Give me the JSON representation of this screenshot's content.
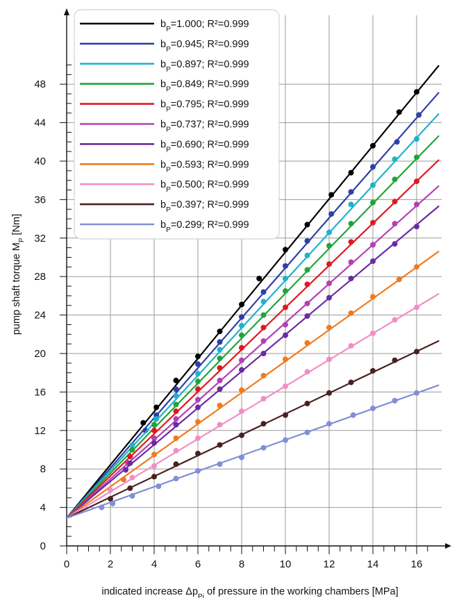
{
  "chart_data": {
    "type": "line",
    "xlabel": {
      "prefix": "indicated increase Δp",
      "subscript": "Pi",
      "suffix": " of pressure in the working chambers [MPa]"
    },
    "ylabel": {
      "prefix": "pump shaft torque M",
      "subscript": "P",
      "suffix": " [Nm]"
    },
    "xlim": [
      0,
      17
    ],
    "ylim": [
      0,
      51
    ],
    "xticks": [
      0,
      2,
      4,
      6,
      8,
      10,
      12,
      14,
      16
    ],
    "yticks": [
      0,
      4,
      8,
      12,
      16,
      20,
      24,
      28,
      32,
      36,
      40,
      44,
      48
    ],
    "grid": true,
    "legend": "top-left",
    "series": [
      {
        "name": "bP=1.000; R²=0.999",
        "b_value": "1.000",
        "r2": "0.999",
        "color": "#000000",
        "line": {
          "x0": 0,
          "y0": 2.9,
          "x1": 17,
          "y1": 49.9
        },
        "points": [
          [
            3.5,
            12.8
          ],
          [
            4.1,
            14.4
          ],
          [
            5.0,
            17.2
          ],
          [
            6.0,
            19.7
          ],
          [
            7.0,
            22.3
          ],
          [
            8.0,
            25.1
          ],
          [
            8.8,
            27.8
          ],
          [
            10.0,
            30.8
          ],
          [
            11.0,
            33.4
          ],
          [
            12.1,
            36.5
          ],
          [
            13.0,
            38.8
          ],
          [
            14.0,
            41.6
          ],
          [
            15.2,
            45.1
          ],
          [
            16.0,
            47.2
          ]
        ]
      },
      {
        "name": "bP=0.945; R²=0.999",
        "b_value": "0.945",
        "r2": "0.999",
        "color": "#2e3fa6",
        "line": {
          "x0": 0,
          "y0": 2.9,
          "x1": 17,
          "y1": 47.1
        },
        "points": [
          [
            3.6,
            12.0
          ],
          [
            4.1,
            13.6
          ],
          [
            5.0,
            16.3
          ],
          [
            6.0,
            18.9
          ],
          [
            7.0,
            21.2
          ],
          [
            8.0,
            23.8
          ],
          [
            9.0,
            26.4
          ],
          [
            10.0,
            29.1
          ],
          [
            11.0,
            31.7
          ],
          [
            12.1,
            34.5
          ],
          [
            13.0,
            36.8
          ],
          [
            14.0,
            39.4
          ],
          [
            15.1,
            42.0
          ],
          [
            16.1,
            44.8
          ]
        ]
      },
      {
        "name": "bP=0.897; R²=0.999",
        "b_value": "0.897",
        "r2": "0.999",
        "color": "#1fb2cc",
        "line": {
          "x0": 0,
          "y0": 2.9,
          "x1": 17,
          "y1": 44.9
        },
        "points": [
          [
            3.0,
            10.5
          ],
          [
            4.1,
            13.2
          ],
          [
            5.0,
            15.6
          ],
          [
            6.0,
            17.9
          ],
          [
            7.0,
            20.4
          ],
          [
            8.0,
            22.9
          ],
          [
            9.0,
            25.4
          ],
          [
            10.0,
            27.8
          ],
          [
            11.0,
            30.2
          ],
          [
            12.0,
            32.6
          ],
          [
            13.0,
            35.5
          ],
          [
            14.0,
            37.5
          ],
          [
            15.0,
            40.2
          ],
          [
            16.0,
            42.3
          ]
        ]
      },
      {
        "name": "bP=0.849; R²=0.999",
        "b_value": "0.849",
        "r2": "0.999",
        "color": "#23a33a",
        "line": {
          "x0": 0,
          "y0": 2.9,
          "x1": 17,
          "y1": 42.6
        },
        "points": [
          [
            3.0,
            10.0
          ],
          [
            4.0,
            12.6
          ],
          [
            5.0,
            14.7
          ],
          [
            6.0,
            17.1
          ],
          [
            7.0,
            19.5
          ],
          [
            8.0,
            21.9
          ],
          [
            9.0,
            24.0
          ],
          [
            10.0,
            26.5
          ],
          [
            11.0,
            28.7
          ],
          [
            12.0,
            31.2
          ],
          [
            13.0,
            33.5
          ],
          [
            14.0,
            35.7
          ],
          [
            15.0,
            38.1
          ],
          [
            16.0,
            40.4
          ]
        ]
      },
      {
        "name": "bP=0.795; R²=0.999",
        "b_value": "0.795",
        "r2": "0.999",
        "color": "#e0191f",
        "line": {
          "x0": 0,
          "y0": 2.9,
          "x1": 17,
          "y1": 40.1
        },
        "points": [
          [
            2.9,
            9.3
          ],
          [
            4.0,
            12.0
          ],
          [
            5.0,
            14.0
          ],
          [
            6.0,
            16.3
          ],
          [
            7.0,
            18.5
          ],
          [
            8.0,
            20.6
          ],
          [
            9.0,
            22.7
          ],
          [
            10.0,
            24.8
          ],
          [
            11.0,
            27.2
          ],
          [
            12.0,
            29.3
          ],
          [
            13.0,
            31.6
          ],
          [
            14.0,
            33.6
          ],
          [
            15.0,
            35.8
          ],
          [
            16.0,
            37.9
          ]
        ]
      },
      {
        "name": "bP=0.737; R²=0.999",
        "b_value": "0.737",
        "r2": "0.999",
        "color": "#b43fb5",
        "line": {
          "x0": 0,
          "y0": 2.9,
          "x1": 17,
          "y1": 37.4
        },
        "points": [
          [
            2.8,
            8.6
          ],
          [
            4.0,
            11.2
          ],
          [
            5.0,
            13.2
          ],
          [
            6.0,
            15.2
          ],
          [
            7.0,
            17.2
          ],
          [
            8.0,
            19.3
          ],
          [
            9.0,
            21.3
          ],
          [
            10.0,
            23.0
          ],
          [
            11.0,
            25.2
          ],
          [
            12.0,
            27.3
          ],
          [
            13.0,
            29.5
          ],
          [
            14.0,
            31.3
          ],
          [
            15.0,
            33.5
          ],
          [
            16.0,
            35.5
          ]
        ]
      },
      {
        "name": "bP=0.690; R²=0.999",
        "b_value": "0.690",
        "r2": "0.999",
        "color": "#6a2ba2",
        "line": {
          "x0": 0,
          "y0": 2.9,
          "x1": 17,
          "y1": 35.3
        },
        "points": [
          [
            2.7,
            7.9
          ],
          [
            2.9,
            8.6
          ],
          [
            4.0,
            10.7
          ],
          [
            5.0,
            12.6
          ],
          [
            6.0,
            14.4
          ],
          [
            7.0,
            16.3
          ],
          [
            8.0,
            18.3
          ],
          [
            9.0,
            20.0
          ],
          [
            10.0,
            21.9
          ],
          [
            11.0,
            23.9
          ],
          [
            12.0,
            25.8
          ],
          [
            13.0,
            27.8
          ],
          [
            14.0,
            29.6
          ],
          [
            15.0,
            31.4
          ],
          [
            16.0,
            33.2
          ]
        ]
      },
      {
        "name": "bP=0.593; R²=0.999",
        "b_value": "0.593",
        "r2": "0.999",
        "color": "#f07a1d",
        "line": {
          "x0": 0,
          "y0": 2.9,
          "x1": 17,
          "y1": 30.6
        },
        "points": [
          [
            2.6,
            6.9
          ],
          [
            4.0,
            9.5
          ],
          [
            5.0,
            11.2
          ],
          [
            6.0,
            12.9
          ],
          [
            7.0,
            14.6
          ],
          [
            8.0,
            16.2
          ],
          [
            9.0,
            17.7
          ],
          [
            10.0,
            19.4
          ],
          [
            11.0,
            21.1
          ],
          [
            12.0,
            22.7
          ],
          [
            13.0,
            24.2
          ],
          [
            14.0,
            25.9
          ],
          [
            15.2,
            27.7
          ],
          [
            16.0,
            29.0
          ]
        ]
      },
      {
        "name": "bP=0.500; R²=0.999",
        "b_value": "0.500",
        "r2": "0.999",
        "color": "#f08ec6",
        "line": {
          "x0": 0,
          "y0": 2.9,
          "x1": 17,
          "y1": 26.2
        },
        "points": [
          [
            2.0,
            5.8
          ],
          [
            3.0,
            7.1
          ],
          [
            4.0,
            8.3
          ],
          [
            5.0,
            9.9
          ],
          [
            6.0,
            11.2
          ],
          [
            7.0,
            12.6
          ],
          [
            8.0,
            14.0
          ],
          [
            9.0,
            15.3
          ],
          [
            10.0,
            16.6
          ],
          [
            11.0,
            18.1
          ],
          [
            12.0,
            19.4
          ],
          [
            13.0,
            20.8
          ],
          [
            14.0,
            22.1
          ],
          [
            15.0,
            23.5
          ],
          [
            16.0,
            24.8
          ]
        ]
      },
      {
        "name": "bP=0.397; R²=0.999",
        "b_value": "0.397",
        "r2": "0.999",
        "color": "#4a2020",
        "line": {
          "x0": 0,
          "y0": 2.9,
          "x1": 17,
          "y1": 21.3
        },
        "points": [
          [
            2.0,
            4.9
          ],
          [
            2.9,
            6.0
          ],
          [
            4.0,
            7.2
          ],
          [
            5.0,
            8.5
          ],
          [
            6.0,
            9.6
          ],
          [
            7.0,
            10.5
          ],
          [
            8.0,
            11.5
          ],
          [
            9.0,
            12.7
          ],
          [
            10.0,
            13.6
          ],
          [
            11.0,
            14.8
          ],
          [
            12.0,
            15.9
          ],
          [
            13.0,
            17.0
          ],
          [
            14.0,
            18.2
          ],
          [
            15.0,
            19.3
          ],
          [
            16.0,
            20.2
          ]
        ]
      },
      {
        "name": "bP=0.299; R²=0.999",
        "b_value": "0.299",
        "r2": "0.999",
        "color": "#7f90d4",
        "line": {
          "x0": 0,
          "y0": 2.9,
          "x1": 17,
          "y1": 16.7
        },
        "points": [
          [
            1.6,
            4.0
          ],
          [
            2.1,
            4.4
          ],
          [
            3.0,
            5.2
          ],
          [
            4.2,
            6.2
          ],
          [
            5.0,
            7.0
          ],
          [
            6.0,
            7.8
          ],
          [
            7.0,
            8.5
          ],
          [
            8.0,
            9.2
          ],
          [
            9.0,
            10.2
          ],
          [
            10.0,
            11.0
          ],
          [
            11.0,
            11.8
          ],
          [
            12.0,
            12.7
          ],
          [
            13.1,
            13.6
          ],
          [
            14.0,
            14.3
          ],
          [
            15.0,
            15.1
          ],
          [
            16.0,
            15.9
          ]
        ]
      }
    ]
  }
}
